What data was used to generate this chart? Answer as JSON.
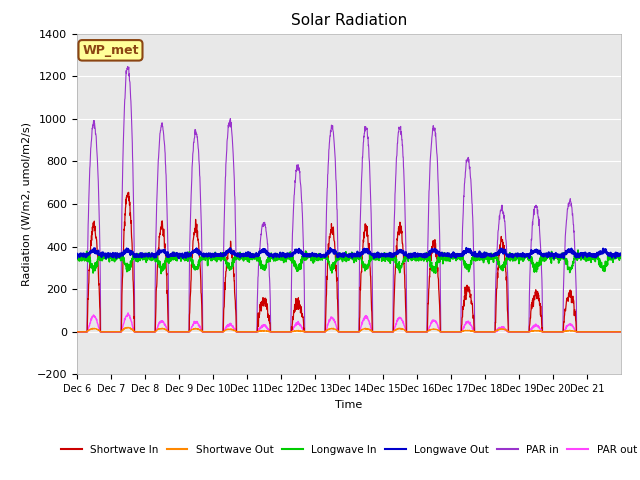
{
  "title": "Solar Radiation",
  "ylabel": "Radiation (W/m2, umol/m2/s)",
  "xlabel": "Time",
  "ylim": [
    -200,
    1400
  ],
  "xlim": [
    0,
    16
  ],
  "yticks": [
    -200,
    0,
    200,
    400,
    600,
    800,
    1000,
    1200,
    1400
  ],
  "xtick_labels": [
    "Dec 6",
    "Dec 7",
    "Dec 8",
    "Dec 9",
    "Dec 10",
    "Dec 11",
    "Dec 12",
    "Dec 13",
    "Dec 14",
    "Dec 15",
    "Dec 16",
    "Dec 17",
    "Dec 18",
    "Dec 19",
    "Dec 20",
    "Dec 21"
  ],
  "background_color": "#e8e8e8",
  "grid_color": "#ffffff",
  "label_box_text": "WP_met",
  "label_box_facecolor": "#ffff99",
  "label_box_edgecolor": "#8B4513",
  "colors": {
    "shortwave_in": "#cc0000",
    "shortwave_out": "#ff8800",
    "longwave_in": "#00cc00",
    "longwave_out": "#0000cc",
    "par_in": "#9933cc",
    "par_out": "#ff44ff"
  },
  "legend": [
    {
      "label": "Shortwave In",
      "color": "#cc0000"
    },
    {
      "label": "Shortwave Out",
      "color": "#ff8800"
    },
    {
      "label": "Longwave In",
      "color": "#00cc00"
    },
    {
      "label": "Longwave Out",
      "color": "#0000cc"
    },
    {
      "label": "PAR in",
      "color": "#9933cc"
    },
    {
      "label": "PAR out",
      "color": "#ff44ff"
    }
  ],
  "figsize": [
    6.4,
    4.8
  ],
  "dpi": 100
}
